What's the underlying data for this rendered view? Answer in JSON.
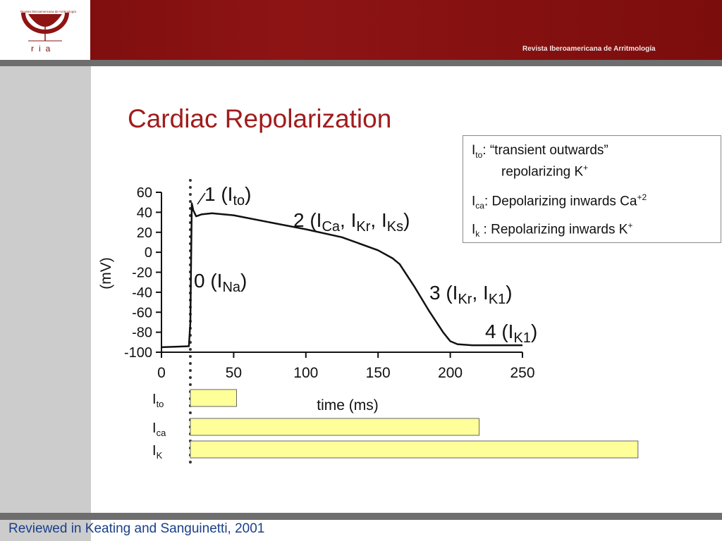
{
  "header": {
    "logo_tiny_text": "Revista Iberoamericana de Arritmología",
    "logo_word": "ria",
    "title": "Revista Iberoamericana de Arritmología"
  },
  "slide": {
    "title": "Cardiac Repolarization",
    "footer": "Reviewed in Keating and Sanguinetti, 2001"
  },
  "legend": {
    "ito_label": "I",
    "ito_sub": "to",
    "ito_text": ": “transient outwards”",
    "ito_text2": "repolarizing K",
    "ito_sup": "+",
    "ica_label": "I",
    "ica_sub": "ca",
    "ica_text": ": Depolarizing inwards Ca",
    "ica_sup": "+2",
    "ik_label": "I",
    "ik_sub": "k",
    "ik_text": " : Repolarizing inwards K",
    "ik_sup": "+"
  },
  "colors": {
    "accent": "#8e1414",
    "title": "#a01c1c",
    "bar_fill": "#ffff99",
    "footer": "#1a3f8a"
  },
  "chart_data": {
    "type": "line",
    "xlabel": "time (ms)",
    "ylabel": "(mV)",
    "xlim": [
      0,
      250
    ],
    "ylim": [
      -100,
      60
    ],
    "x_ticks": [
      0,
      50,
      100,
      150,
      200,
      250
    ],
    "y_ticks": [
      60,
      40,
      20,
      0,
      -20,
      -40,
      -60,
      -80,
      -100
    ],
    "grid": false,
    "series": [
      {
        "x": [
          0,
          19,
          20,
          21,
          22,
          24,
          28,
          35,
          50,
          75,
          100,
          125,
          150,
          160,
          165,
          175,
          185,
          195,
          200,
          205,
          215,
          230,
          250
        ],
        "y": [
          -95,
          -94,
          -70,
          49,
          42,
          36,
          38,
          39,
          37,
          30,
          23,
          15,
          2,
          -6,
          -12,
          -34,
          -58,
          -80,
          -89,
          -92,
          -93,
          -93,
          -93
        ]
      }
    ],
    "phase_annotations": [
      {
        "phase": "1",
        "currents": [
          "to"
        ]
      },
      {
        "phase": "2",
        "currents": [
          "Ca",
          "Kr",
          "Ks"
        ]
      },
      {
        "phase": "0",
        "currents": [
          "Na"
        ]
      },
      {
        "phase": "3",
        "currents": [
          "Kr",
          "K1"
        ]
      },
      {
        "phase": "4",
        "currents": [
          "K1"
        ]
      }
    ],
    "current_bars": [
      {
        "label": "I",
        "sub": "to",
        "start": 20,
        "end": 52
      },
      {
        "label": "I",
        "sub": "ca",
        "start": 20,
        "end": 220
      },
      {
        "label": "I",
        "sub": "K",
        "start": 20,
        "end": 330
      }
    ],
    "stimulus_time": 20
  }
}
